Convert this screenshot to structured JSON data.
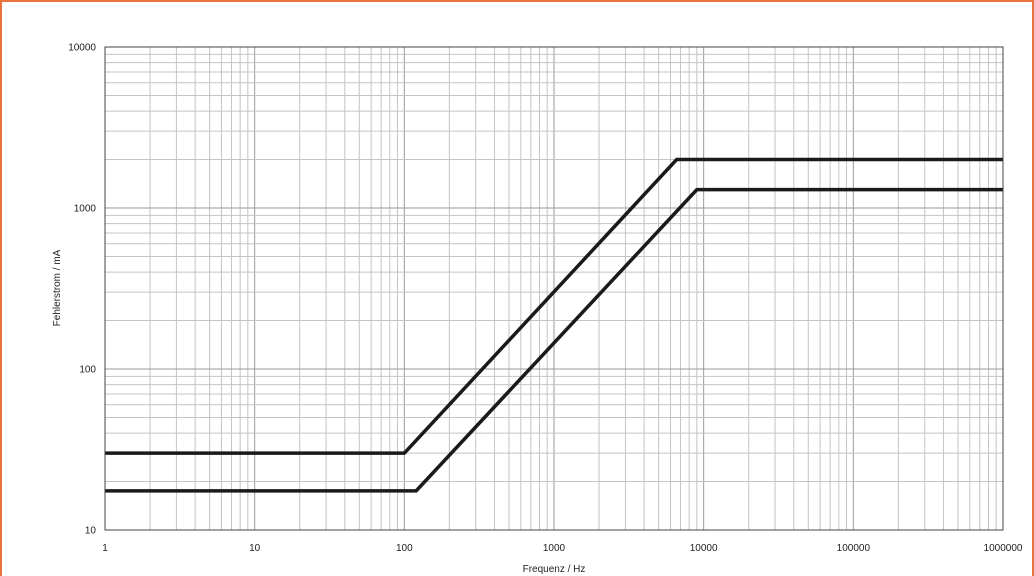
{
  "chart_data": {
    "type": "line",
    "title": "",
    "xlabel": "Frequenz / Hz",
    "ylabel": "Fehlerstrom / mA",
    "x_scale": "log",
    "y_scale": "log",
    "xlim": [
      1,
      1000000
    ],
    "ylim": [
      10,
      10000
    ],
    "x_ticks": [
      "1",
      "10",
      "100",
      "1000",
      "10000",
      "100000",
      "1000000"
    ],
    "y_ticks": [
      "10",
      "100",
      "1000",
      "10000"
    ],
    "grid": true,
    "line_color": "#1a1a1a",
    "series": [
      {
        "x": [
          1,
          100,
          6600,
          1000000
        ],
        "y": [
          30,
          30,
          2000,
          2000
        ]
      },
      {
        "x": [
          1,
          120,
          9000,
          1000000
        ],
        "y": [
          17.5,
          17.5,
          1300,
          1300
        ]
      }
    ]
  }
}
